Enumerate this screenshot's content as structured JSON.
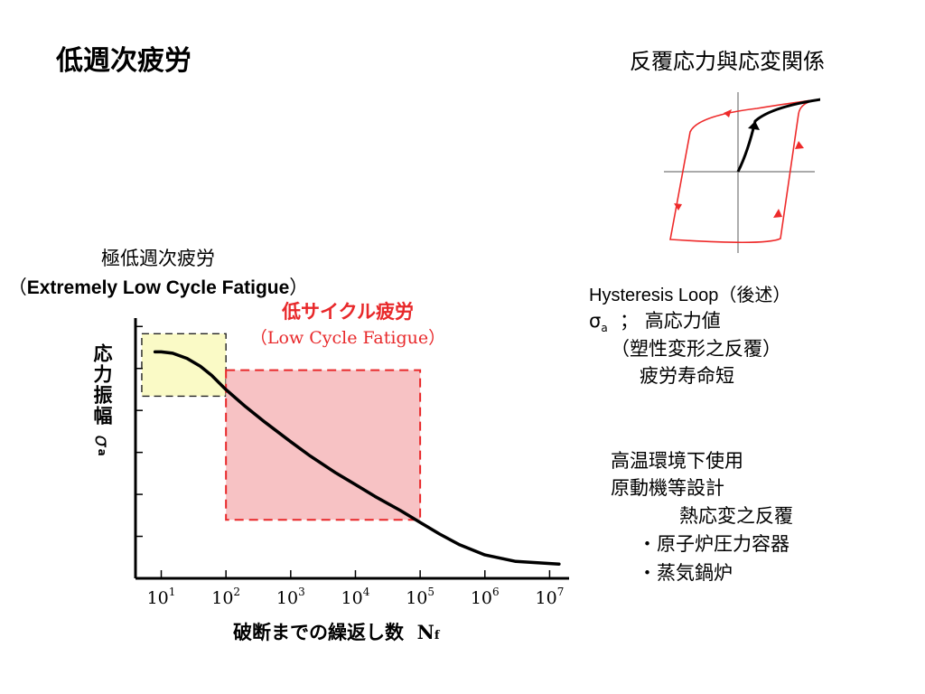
{
  "title": "低週次疲労",
  "hysteresis_title": "反覆応力與応変関係",
  "elcf_label_jp": "極低週次疲労",
  "elcf_label_en": "Extremely Low Cycle Fatigue",
  "lcf_label_jp": "低サイクル疲労",
  "lcf_label_en": "（Low Cycle Fatigue）",
  "notes": {
    "hysteresis_loop": "Hysteresis Loop（後述）",
    "sigma_a": "σ",
    "sigma_sub": "a",
    "high_stress": "；  高応力値",
    "plastic": "（塑性変形之反覆）",
    "short_life": "疲労寿命短",
    "high_temp": "高温環境下使用",
    "prime_mover": "原動機等設計",
    "thermal_stress": "熱応変之反覆",
    "reactor": "・原子炉圧力容器",
    "boiler": "・蒸気鍋炉"
  },
  "chart_data": {
    "type": "line",
    "title": "",
    "ylabel": "応力振幅",
    "ylabel_symbol": "σ",
    "ylabel_symbol_sub": "a",
    "xlabel": "破断までの繰返し数",
    "xlabel_symbol": "N",
    "xlabel_symbol_sub": "f",
    "x_scale": "log",
    "xlim": [
      4,
      20000000
    ],
    "ylim": [
      0,
      10
    ],
    "x_tick_bases": [
      "10",
      "10",
      "10",
      "10",
      "10",
      "10",
      "10"
    ],
    "x_tick_exps": [
      "1",
      "2",
      "3",
      "4",
      "5",
      "6",
      "7"
    ],
    "x_tick_values": [
      10,
      100,
      1000,
      10000,
      100000,
      1000000,
      10000000
    ],
    "y_tick_count": 6,
    "series": [
      {
        "color": "#000000",
        "x": [
          8,
          10,
          15,
          25,
          40,
          60,
          100,
          200,
          400,
          1000,
          2000,
          5000,
          10000,
          20000,
          50000,
          100000,
          200000,
          400000,
          1000000,
          3000000,
          14000000
        ],
        "y": [
          8.7,
          8.7,
          8.65,
          8.45,
          8.15,
          7.8,
          7.25,
          6.6,
          6.0,
          5.25,
          4.7,
          4.05,
          3.6,
          3.15,
          2.6,
          2.15,
          1.7,
          1.3,
          0.9,
          0.65,
          0.55
        ]
      }
    ],
    "regions": [
      {
        "label": "Extremely Low Cycle Fatigue",
        "x": [
          5,
          100
        ],
        "y": [
          7.0,
          9.4
        ],
        "fill": "#fafac6",
        "stroke": "#222222"
      },
      {
        "label": "Low Cycle Fatigue",
        "x": [
          100,
          100000
        ],
        "y": [
          2.25,
          8.0
        ],
        "fill": "#f7c2c4",
        "stroke": "#e8282a"
      }
    ]
  }
}
